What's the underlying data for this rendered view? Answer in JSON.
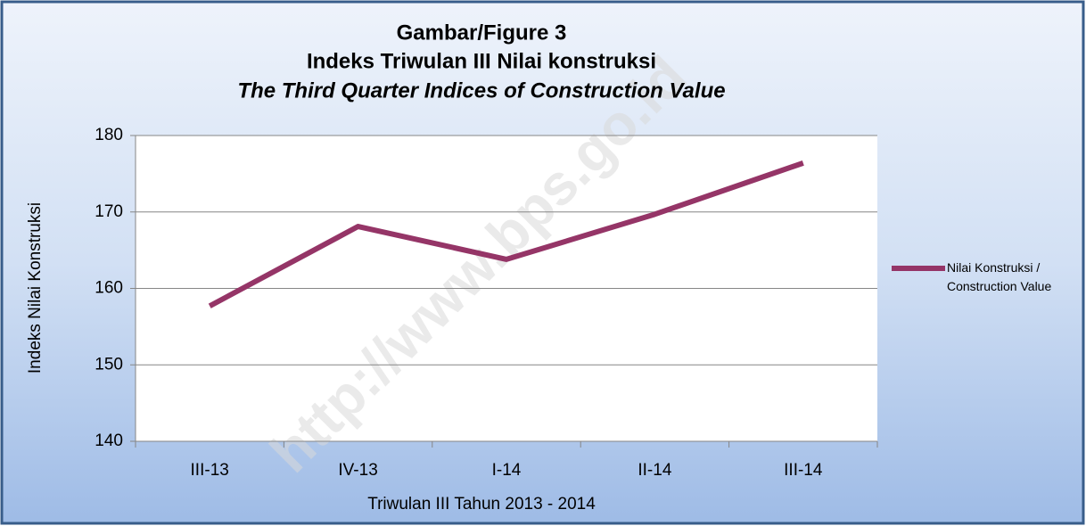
{
  "chart_data": {
    "type": "line",
    "title_lines": [
      "Gambar/Figure 3",
      "Indeks Triwulan III Nilai konstruksi",
      "The Third Quarter Indices of Construction Value"
    ],
    "watermark": "http://www.bps.go.id",
    "x_label": "Triwulan III Tahun 2013 - 2014",
    "y_label": "Indeks Nilai Konstruksi",
    "categories": [
      "III-13",
      "IV-13",
      "I-14",
      "II-14",
      "III-14"
    ],
    "series": [
      {
        "name": "Nilai Konstruksi / Construction Value",
        "color": "#953567",
        "values": [
          157.7,
          168.1,
          163.8,
          169.7,
          176.4
        ]
      }
    ],
    "ylim": [
      140,
      180
    ],
    "yticks": [
      140,
      150,
      160,
      170,
      180
    ],
    "grid": true,
    "legend": "right"
  }
}
